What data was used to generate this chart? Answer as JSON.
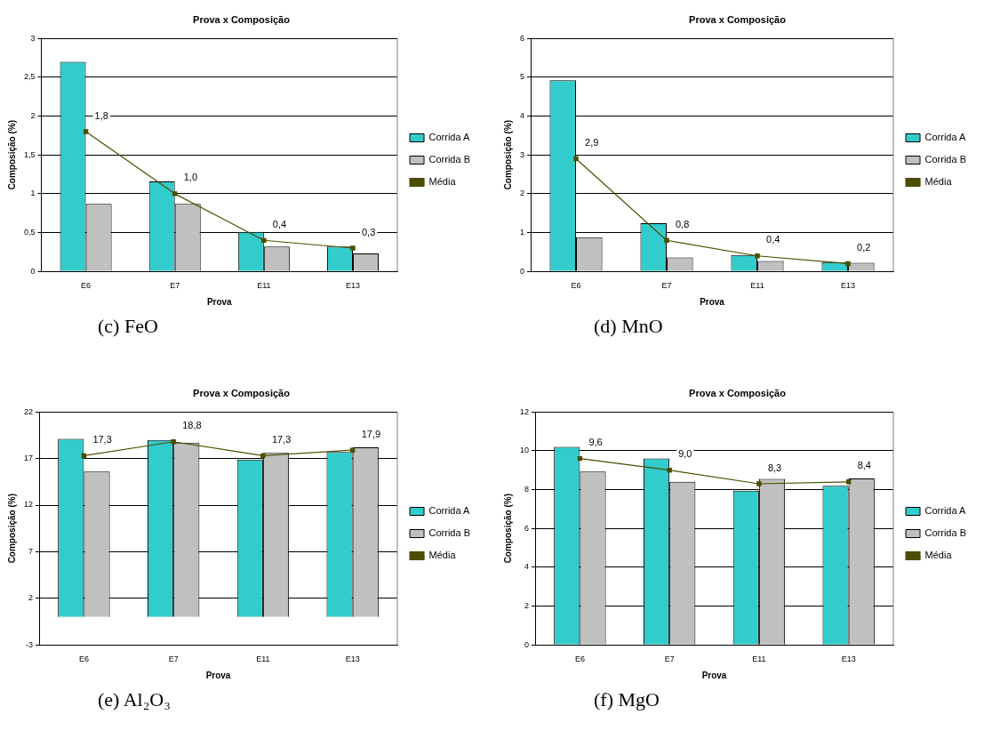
{
  "chart_data": [
    {
      "type": "bar",
      "title": "Prova x Composição",
      "xlabel": "Prova",
      "ylabel": "Composição (%)",
      "categories": [
        "E6",
        "E7",
        "E11",
        "E13"
      ],
      "ylim": [
        0,
        3
      ],
      "yticks": [
        0,
        {
          "value": 0.5,
          "label": "0,5"
        },
        1,
        {
          "value": 1.5,
          "label": "1,5"
        },
        2,
        {
          "value": 2.5,
          "label": "2,5"
        },
        3
      ],
      "grid": "y",
      "legend": "right",
      "marker": "square",
      "annotations": [
        "(c) FeO"
      ],
      "series": [
        {
          "name": "Corrida A",
          "color": "#33cccc",
          "values": [
            2.7,
            1.16,
            0.51,
            0.32
          ]
        },
        {
          "name": "Corrida B",
          "color": "#c0c0c0",
          "values": [
            0.87,
            0.87,
            0.32,
            0.23
          ]
        },
        {
          "name": "Média",
          "type": "line",
          "color": "#4d4d00",
          "values": [
            1.8,
            1.0,
            0.4,
            0.3
          ],
          "value_labels": [
            "1,8",
            "1,0",
            "0,4",
            "0,3"
          ]
        }
      ]
    },
    {
      "type": "bar",
      "title": "Prova x Composição",
      "xlabel": "Prova",
      "ylabel": "Composição (%)",
      "categories": [
        "E6",
        "E7",
        "E11",
        "E13"
      ],
      "ylim": [
        0,
        6
      ],
      "yticks": [
        0,
        1,
        2,
        3,
        4,
        5,
        6
      ],
      "grid": "y",
      "legend": "right",
      "marker": "square",
      "annotations": [
        "(d) MnO"
      ],
      "series": [
        {
          "name": "Corrida A",
          "color": "#33cccc",
          "values": [
            4.92,
            1.24,
            0.42,
            0.24
          ]
        },
        {
          "name": "Corrida B",
          "color": "#c0c0c0",
          "values": [
            0.88,
            0.36,
            0.27,
            0.22
          ]
        },
        {
          "name": "Média",
          "type": "line",
          "color": "#4d4d00",
          "values": [
            2.9,
            0.8,
            0.4,
            0.2
          ],
          "value_labels": [
            "2,9",
            "0,8",
            "0,4",
            "0,2"
          ]
        }
      ]
    },
    {
      "type": "bar",
      "title": "Prova x Composição",
      "xlabel": "Prova",
      "ylabel": "Composição (%)",
      "categories": [
        "E6",
        "E7",
        "E11",
        "E13"
      ],
      "ylim": [
        -3,
        22
      ],
      "yticks": [
        -3,
        2,
        7,
        12,
        17,
        22
      ],
      "grid": "y",
      "legend": "right",
      "marker": "square",
      "annotations": [
        "(e) Al₂O₃"
      ],
      "series": [
        {
          "name": "Corrida A",
          "color": "#33cccc",
          "values": [
            19.1,
            19.0,
            16.9,
            17.7
          ]
        },
        {
          "name": "Corrida B",
          "color": "#c0c0c0",
          "values": [
            15.6,
            18.7,
            17.6,
            18.2
          ]
        },
        {
          "name": "Média",
          "type": "line",
          "color": "#4d4d00",
          "values": [
            17.3,
            18.8,
            17.3,
            17.9
          ],
          "value_labels": [
            "17,3",
            "18,8",
            "17,3",
            "17,9"
          ]
        }
      ]
    },
    {
      "type": "bar",
      "title": "Prova x Composição",
      "xlabel": "Prova",
      "ylabel": "Composição (%)",
      "categories": [
        "E6",
        "E7",
        "E11",
        "E13"
      ],
      "ylim": [
        0,
        12
      ],
      "yticks": [
        0,
        2,
        4,
        6,
        8,
        10,
        12
      ],
      "grid": "y",
      "legend": "right",
      "marker": "square",
      "annotations": [
        "(f) MgO"
      ],
      "series": [
        {
          "name": "Corrida A",
          "color": "#33cccc",
          "values": [
            10.2,
            9.6,
            7.95,
            8.2
          ]
        },
        {
          "name": "Corrida B",
          "color": "#c0c0c0",
          "values": [
            8.93,
            8.4,
            8.55,
            8.57
          ]
        },
        {
          "name": "Média",
          "type": "line",
          "color": "#4d4d00",
          "values": [
            9.6,
            9.0,
            8.3,
            8.4
          ],
          "value_labels": [
            "9,6",
            "9,0",
            "8,3",
            "8,4"
          ]
        }
      ]
    }
  ]
}
